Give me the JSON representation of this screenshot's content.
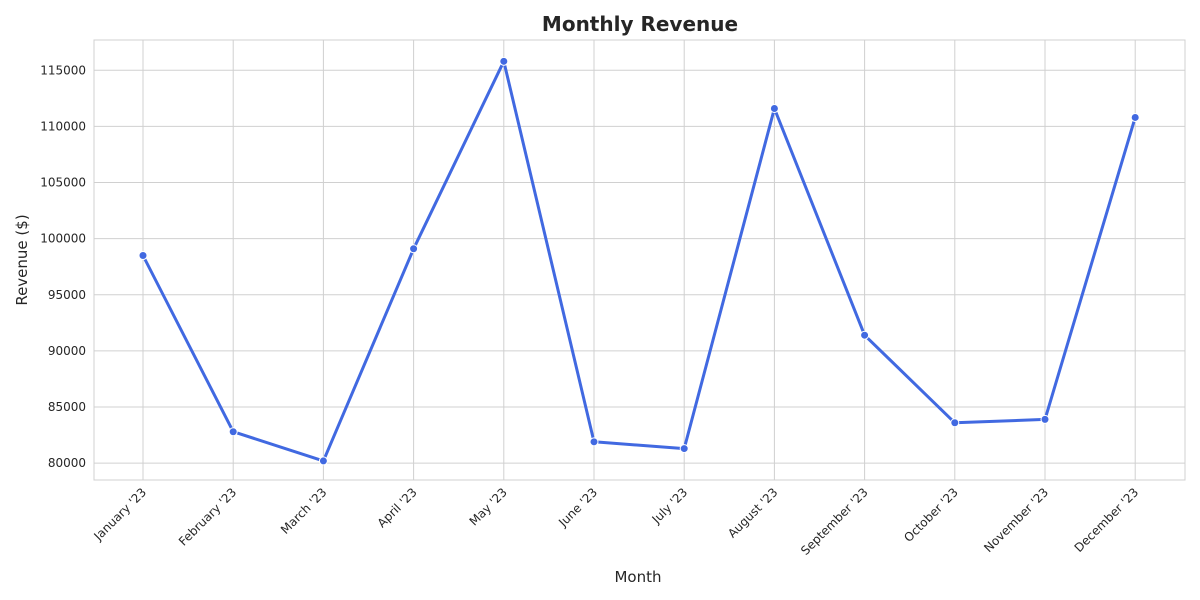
{
  "chart_data": {
    "type": "line",
    "title": "Monthly Revenue",
    "xlabel": "Month",
    "ylabel": "Revenue ($)",
    "categories": [
      "January '23",
      "February '23",
      "March '23",
      "April '23",
      "May '23",
      "June '23",
      "July '23",
      "August '23",
      "September '23",
      "October '23",
      "November '23",
      "December '23"
    ],
    "series": [
      {
        "values": [
          98500,
          82800,
          80200,
          99100,
          115800,
          81900,
          81300,
          111600,
          91400,
          83600,
          83900,
          110800
        ],
        "color": "#4169e1"
      }
    ],
    "ylim": [
      78500,
      117700
    ],
    "yticks": [
      80000,
      85000,
      90000,
      95000,
      100000,
      105000,
      110000,
      115000
    ],
    "grid": true,
    "markers": true
  }
}
